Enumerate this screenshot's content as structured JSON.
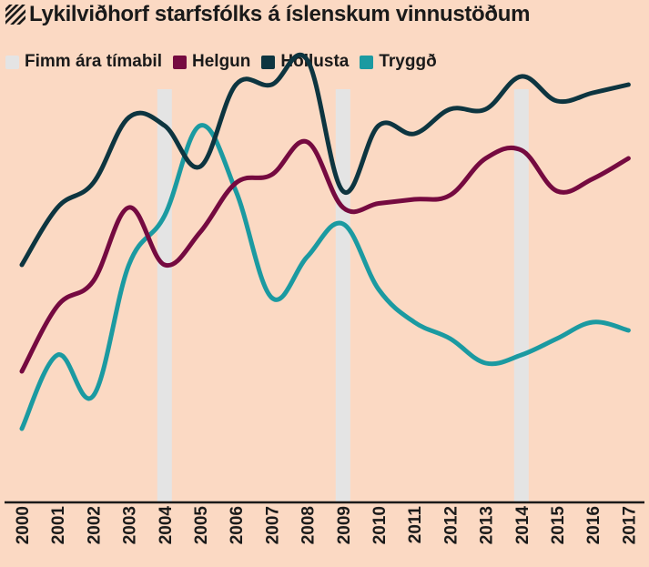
{
  "title": "Lykilviðhorf starfsfólks á íslenskum vinnustöðum",
  "colors": {
    "background": "#fbd9c3",
    "band": "#e4e4e4",
    "Helgun": "#750a40",
    "Hollusta": "#0d3540",
    "Tryggð": "#1b9aa1",
    "axis": "#1a1a1a"
  },
  "legend": [
    {
      "label": "Fimm ára tímabil",
      "color": "#e4e4e4"
    },
    {
      "label": "Helgun",
      "color": "#750a40"
    },
    {
      "label": "Hollusta",
      "color": "#0d3540"
    },
    {
      "label": "Tryggð",
      "color": "#1b9aa1"
    }
  ],
  "chart_data": {
    "type": "line",
    "title": "Lykilviðhorf starfsfólks á íslenskum vinnustöðum",
    "xlabel": "",
    "ylabel": "",
    "grid": false,
    "legend_position": "top",
    "x": [
      "2000",
      "2001",
      "2002",
      "2003",
      "2004",
      "2005",
      "2006",
      "2007",
      "2008",
      "2009",
      "2010",
      "2011",
      "2012",
      "2013",
      "2014",
      "2015",
      "2016",
      "2017"
    ],
    "highlight_years": [
      "2004",
      "2009",
      "2014"
    ],
    "ylim": [
      0,
      100
    ],
    "series": [
      {
        "name": "Helgun",
        "values": [
          16,
          24,
          27,
          36,
          29,
          33,
          39,
          40,
          44,
          36,
          36.5,
          37,
          37.5,
          42,
          43,
          38,
          39.5,
          42
        ]
      },
      {
        "name": "Hollusta",
        "values": [
          29,
          36,
          39,
          47,
          46,
          41,
          51,
          51,
          54,
          38,
          46,
          45,
          48,
          48,
          52,
          49,
          50,
          51
        ]
      },
      {
        "name": "Tryggð",
        "values": [
          9,
          18,
          13,
          29,
          35,
          46,
          38,
          25,
          30,
          34,
          26,
          22,
          20,
          17,
          18,
          20,
          22,
          21
        ]
      }
    ]
  }
}
